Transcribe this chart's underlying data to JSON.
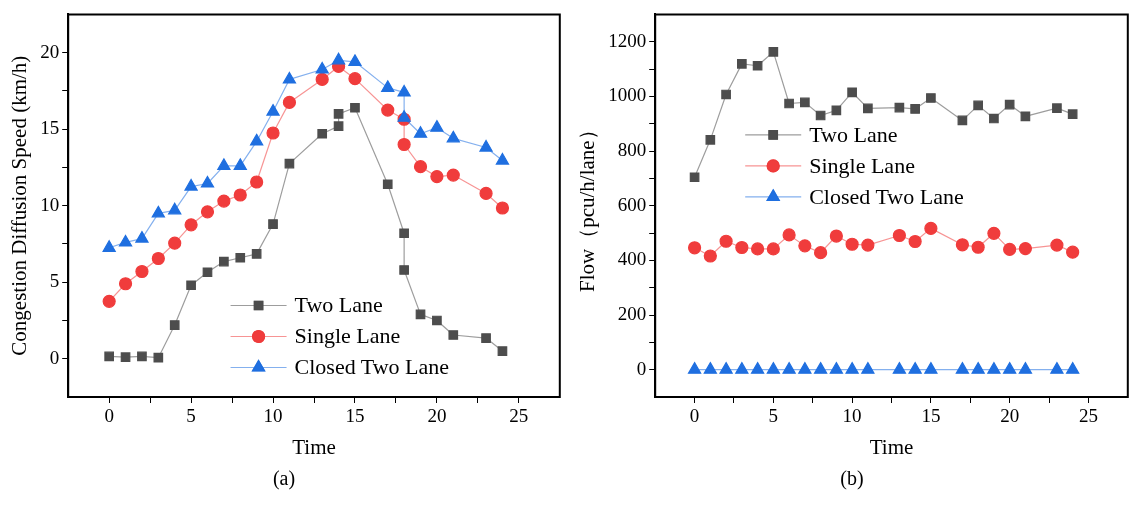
{
  "chart_data": [
    {
      "type": "line",
      "xlabel": "Time",
      "ylabel": "Congestion Diffusion Speed (km/h)",
      "xlim": [
        -2.5,
        27.5
      ],
      "ylim": [
        -2.5,
        22.5
      ],
      "xticks": [
        0,
        {
          "value": 2.5,
          "label": null
        },
        5,
        {
          "value": 7.5,
          "label": null
        },
        10,
        {
          "value": 12.5,
          "label": null
        },
        15,
        {
          "value": 17.5,
          "label": null
        },
        20,
        {
          "value": 22.5,
          "label": null
        },
        25
      ],
      "yticks": [
        0,
        {
          "value": 2.5,
          "label": null
        },
        5,
        {
          "value": 7.5,
          "label": null
        },
        10,
        {
          "value": 12.5,
          "label": null
        },
        15,
        {
          "value": 17.5,
          "label": null
        },
        20
      ],
      "grid": false,
      "legend": "bottom",
      "annotations": [
        "(a)"
      ],
      "series": [
        {
          "name": "Two Lane",
          "color": "#4d4d4d",
          "marker": "square",
          "x": [
            0,
            1,
            2,
            3,
            4,
            5,
            6,
            7,
            8,
            9,
            10,
            11,
            13,
            14,
            14,
            15,
            17,
            18,
            18,
            19,
            20,
            21,
            23,
            24
          ],
          "values": [
            0.15,
            0.1,
            0.15,
            0.07,
            2.2,
            4.8,
            5.65,
            6.35,
            6.6,
            6.85,
            8.8,
            12.75,
            14.7,
            15.2,
            16.0,
            16.4,
            11.4,
            8.2,
            5.8,
            2.9,
            2.5,
            1.55,
            1.35,
            0.5
          ]
        },
        {
          "name": "Single Lane",
          "color": "#f03c3c",
          "marker": "circle",
          "x": [
            0,
            1,
            2,
            3,
            4,
            5,
            6,
            7,
            8,
            9,
            10,
            11,
            13,
            14,
            15,
            17,
            18,
            18,
            19,
            20,
            21,
            23,
            24
          ],
          "values": [
            3.75,
            4.9,
            5.7,
            6.55,
            7.55,
            8.75,
            9.6,
            10.3,
            10.7,
            11.55,
            14.75,
            16.75,
            18.25,
            19.1,
            18.3,
            16.25,
            15.65,
            14.0,
            12.55,
            11.9,
            12.0,
            10.8,
            9.85
          ]
        },
        {
          "name": "Closed Two Lane",
          "color": "#1f6fe0",
          "marker": "triangle",
          "x": [
            0,
            1,
            2,
            3,
            4,
            5,
            6,
            7,
            8,
            9,
            10,
            11,
            13,
            14,
            15,
            17,
            18,
            18,
            19,
            20,
            21,
            23,
            24
          ],
          "values": [
            7.25,
            7.6,
            7.85,
            9.5,
            9.7,
            11.25,
            11.45,
            12.6,
            12.6,
            14.2,
            16.15,
            18.25,
            18.9,
            19.5,
            19.4,
            17.7,
            17.4,
            15.75,
            14.7,
            15.1,
            14.4,
            13.8,
            12.95
          ]
        }
      ]
    },
    {
      "type": "line",
      "xlabel": "Time",
      "ylabel": "Flow（pcu/h/lane）",
      "xlim": [
        -2.5,
        27.5
      ],
      "ylim": [
        -100,
        1300
      ],
      "xticks": [
        0,
        {
          "value": 2.5,
          "label": null
        },
        5,
        {
          "value": 7.5,
          "label": null
        },
        10,
        {
          "value": 12.5,
          "label": null
        },
        15,
        {
          "value": 17.5,
          "label": null
        },
        20,
        {
          "value": 22.5,
          "label": null
        },
        25
      ],
      "yticks": [
        0,
        {
          "value": 100,
          "label": null
        },
        200,
        {
          "value": 300,
          "label": null
        },
        400,
        {
          "value": 500,
          "label": null
        },
        600,
        {
          "value": 700,
          "label": null
        },
        800,
        {
          "value": 900,
          "label": null
        },
        1000,
        {
          "value": 1100,
          "label": null
        },
        1200
      ],
      "grid": false,
      "legend": "top left",
      "annotations": [
        "(b)"
      ],
      "series": [
        {
          "name": "Two Lane",
          "color": "#4d4d4d",
          "marker": "square",
          "x": [
            0,
            1,
            2,
            3,
            4,
            5,
            6,
            7,
            8,
            9,
            10,
            11,
            13,
            14,
            15,
            17,
            18,
            19,
            20,
            21,
            23,
            24
          ],
          "values": [
            704,
            841,
            1007,
            1119,
            1112,
            1163,
            974,
            978,
            930,
            949,
            1015,
            956,
            959,
            954,
            994,
            912,
            967,
            919,
            970,
            927,
            957,
            935
          ]
        },
        {
          "name": "Single Lane",
          "color": "#f03c3c",
          "marker": "circle",
          "x": [
            0,
            1,
            2,
            3,
            4,
            5,
            6,
            7,
            8,
            9,
            10,
            11,
            13,
            14,
            15,
            17,
            18,
            19,
            20,
            21,
            23,
            24
          ],
          "values": [
            446,
            416,
            470,
            447,
            442,
            442,
            493,
            453,
            428,
            489,
            459,
            456,
            491,
            469,
            517,
            457,
            448,
            499,
            440,
            443,
            456,
            430
          ]
        },
        {
          "name": "Closed Two Lane",
          "color": "#1f6fe0",
          "marker": "triangle",
          "x": [
            0,
            1,
            2,
            3,
            4,
            5,
            6,
            7,
            8,
            9,
            10,
            11,
            13,
            14,
            15,
            17,
            18,
            19,
            20,
            21,
            23,
            24
          ],
          "values": [
            0,
            0,
            0,
            0,
            0,
            0,
            0,
            0,
            0,
            0,
            0,
            0,
            0,
            0,
            0,
            0,
            0,
            0,
            0,
            0,
            0,
            0
          ]
        }
      ]
    }
  ]
}
